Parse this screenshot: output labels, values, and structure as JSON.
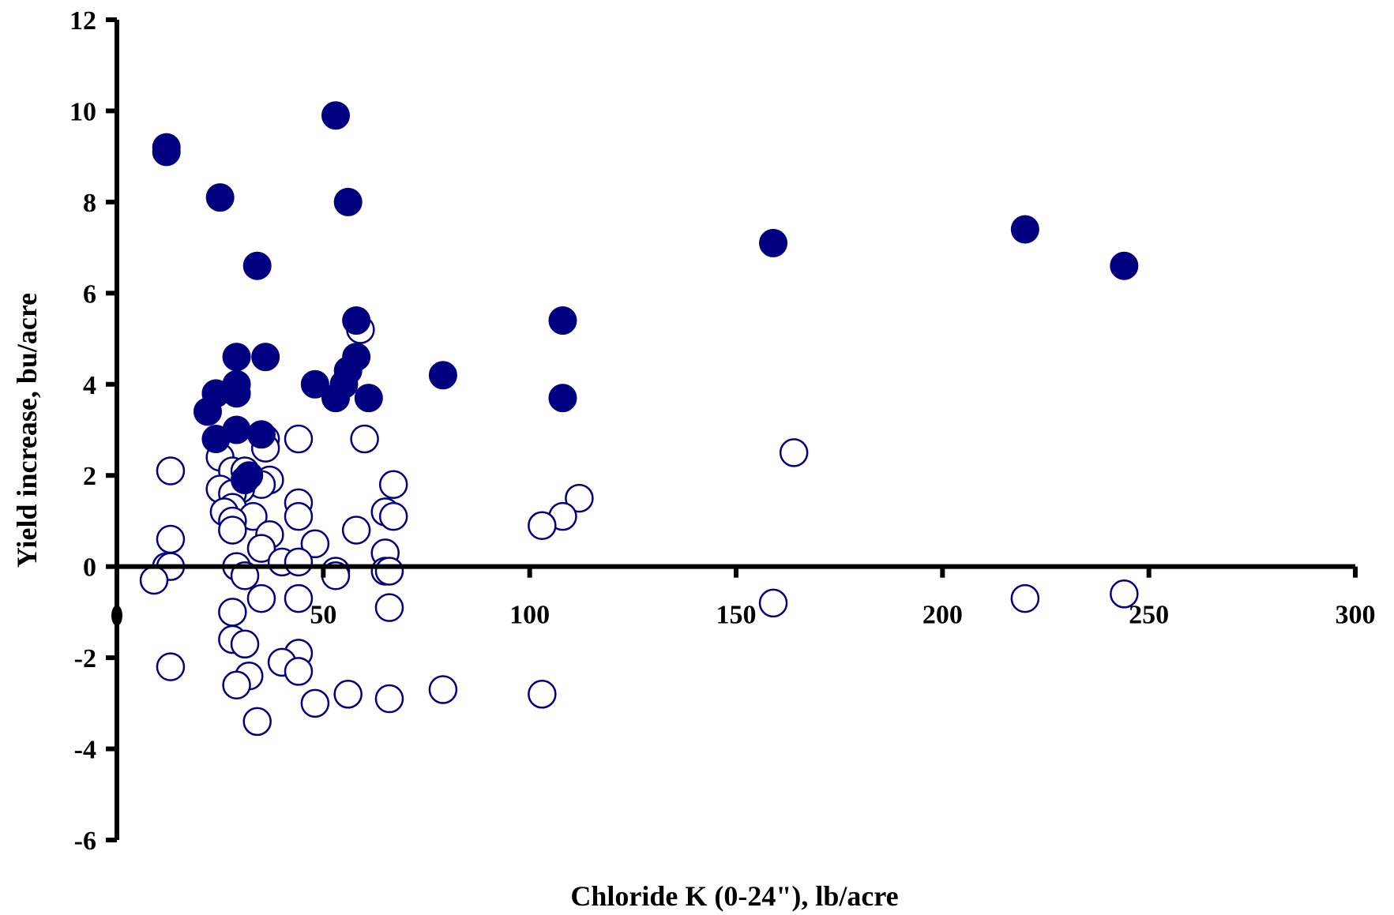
{
  "chart_data": {
    "type": "scatter",
    "xlabel": "Chloride K (0-24\"), lb/acre",
    "ylabel": "Yield increase, bu/acre",
    "xlim": [
      0,
      300
    ],
    "ylim": [
      -6,
      12
    ],
    "x_ticks": [
      50,
      100,
      150,
      200,
      250,
      300
    ],
    "y_ticks": [
      -6,
      -4,
      -2,
      0,
      2,
      4,
      6,
      8,
      10,
      12
    ],
    "grid": false,
    "legend": "none",
    "colors": {
      "filled": "#000080",
      "open_stroke": "#000080",
      "open_fill": "#ffffff",
      "axis": "#000000"
    },
    "series": [
      {
        "marker": "filled-circle",
        "points": [
          [
            12,
            9.2
          ],
          [
            12,
            9.1
          ],
          [
            25,
            8.1
          ],
          [
            53,
            9.9
          ],
          [
            56,
            8.0
          ],
          [
            34,
            6.6
          ],
          [
            159,
            7.1
          ],
          [
            220,
            7.4
          ],
          [
            244,
            6.6
          ],
          [
            58,
            5.4
          ],
          [
            108,
            5.4
          ],
          [
            29,
            4.6
          ],
          [
            36,
            4.6
          ],
          [
            58,
            4.6
          ],
          [
            56,
            4.3
          ],
          [
            79,
            4.2
          ],
          [
            48,
            4.0
          ],
          [
            55,
            4.0
          ],
          [
            29,
            4.0
          ],
          [
            24,
            3.8
          ],
          [
            29,
            3.8
          ],
          [
            53,
            3.7
          ],
          [
            61,
            3.7
          ],
          [
            108,
            3.7
          ],
          [
            22,
            3.4
          ],
          [
            29,
            3.0
          ],
          [
            35,
            2.9
          ],
          [
            24,
            2.8
          ],
          [
            32,
            2.0
          ],
          [
            31,
            1.9
          ]
        ]
      },
      {
        "marker": "open-circle",
        "points": [
          [
            59,
            5.2
          ],
          [
            44,
            2.8
          ],
          [
            60,
            2.8
          ],
          [
            36,
            2.8
          ],
          [
            36,
            2.6
          ],
          [
            164,
            2.5
          ],
          [
            25,
            2.4
          ],
          [
            13,
            2.1
          ],
          [
            28,
            2.1
          ],
          [
            31,
            2.1
          ],
          [
            37,
            1.9
          ],
          [
            35,
            1.8
          ],
          [
            67,
            1.8
          ],
          [
            25,
            1.7
          ],
          [
            30,
            1.7
          ],
          [
            28,
            1.6
          ],
          [
            112,
            1.5
          ],
          [
            44,
            1.4
          ],
          [
            28,
            1.3
          ],
          [
            26,
            1.2
          ],
          [
            65,
            1.2
          ],
          [
            33,
            1.1
          ],
          [
            44,
            1.1
          ],
          [
            67,
            1.1
          ],
          [
            108,
            1.1
          ],
          [
            28,
            1.0
          ],
          [
            103,
            0.9
          ],
          [
            28,
            0.8
          ],
          [
            58,
            0.8
          ],
          [
            37,
            0.7
          ],
          [
            13,
            0.6
          ],
          [
            48,
            0.5
          ],
          [
            35,
            0.4
          ],
          [
            65,
            0.3
          ],
          [
            40,
            0.1
          ],
          [
            44,
            0.1
          ],
          [
            12,
            0.0
          ],
          [
            13,
            0.0
          ],
          [
            29,
            0.0
          ],
          [
            53,
            -0.1
          ],
          [
            65,
            -0.1
          ],
          [
            66,
            -0.1
          ],
          [
            53,
            -0.2
          ],
          [
            31,
            -0.2
          ],
          [
            9,
            -0.3
          ],
          [
            244,
            -0.6
          ],
          [
            35,
            -0.7
          ],
          [
            44,
            -0.7
          ],
          [
            220,
            -0.7
          ],
          [
            159,
            -0.8
          ],
          [
            66,
            -0.9
          ],
          [
            28,
            -1.0
          ],
          [
            28,
            -1.6
          ],
          [
            31,
            -1.7
          ],
          [
            44,
            -1.9
          ],
          [
            40,
            -2.1
          ],
          [
            13,
            -2.2
          ],
          [
            44,
            -2.3
          ],
          [
            32,
            -2.4
          ],
          [
            29,
            -2.6
          ],
          [
            79,
            -2.7
          ],
          [
            56,
            -2.8
          ],
          [
            103,
            -2.8
          ],
          [
            66,
            -2.9
          ],
          [
            48,
            -3.0
          ],
          [
            34,
            -3.4
          ]
        ]
      }
    ]
  }
}
